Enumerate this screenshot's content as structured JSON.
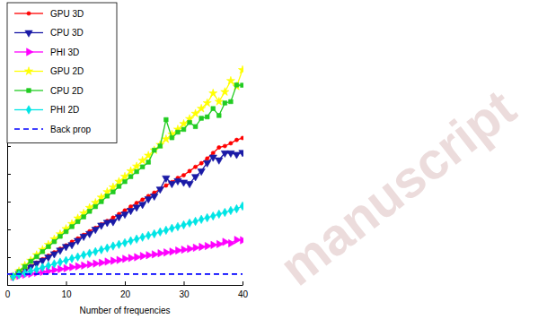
{
  "chart_data": {
    "type": "line",
    "x_label": "Number of frequencies",
    "xlim": [
      0,
      40
    ],
    "xticks": [
      0,
      10,
      20,
      30,
      40
    ],
    "ylim": [
      0,
      8
    ],
    "yticks": [
      0,
      1,
      2,
      3,
      4,
      5,
      6,
      7,
      8
    ],
    "tick_labels": "x",
    "grid": false,
    "legend": "upper left",
    "annotations": [
      "manuscript"
    ],
    "series": [
      {
        "name": "GPU 3D",
        "color": "#ff0000",
        "marker": "circle",
        "line_style": "solid",
        "x": [
          1,
          2,
          3,
          4,
          5,
          6,
          7,
          8,
          9,
          10,
          11,
          12,
          13,
          14,
          15,
          16,
          17,
          18,
          19,
          20,
          21,
          22,
          23,
          24,
          25,
          26,
          27,
          28,
          29,
          30,
          31,
          32,
          33,
          34,
          35,
          36,
          37,
          38,
          39,
          40
        ],
        "values": [
          0.3,
          0.42,
          0.55,
          0.68,
          0.8,
          0.92,
          1.05,
          1.17,
          1.3,
          1.42,
          1.55,
          1.67,
          1.8,
          1.93,
          2.05,
          2.18,
          2.3,
          2.42,
          2.55,
          2.68,
          2.82,
          2.95,
          3.07,
          3.2,
          3.32,
          3.45,
          3.58,
          3.7,
          3.85,
          3.95,
          4.1,
          4.25,
          4.38,
          4.55,
          4.75,
          4.95,
          5.0,
          5.1,
          5.22,
          5.29
        ]
      },
      {
        "name": "CPU 3D",
        "color": "#1a1aa6",
        "marker": "triangle-down",
        "line_style": "solid",
        "x": [
          1,
          2,
          3,
          4,
          5,
          6,
          7,
          8,
          9,
          10,
          11,
          12,
          13,
          14,
          15,
          16,
          17,
          18,
          19,
          20,
          21,
          22,
          23,
          24,
          25,
          26,
          27,
          28,
          29,
          30,
          31,
          32,
          33,
          34,
          35,
          36,
          37,
          38,
          39,
          40
        ],
        "values": [
          0.3,
          0.4,
          0.52,
          0.65,
          0.78,
          0.88,
          1.0,
          1.12,
          1.25,
          1.38,
          1.45,
          1.6,
          1.75,
          1.85,
          2.0,
          2.15,
          2.25,
          2.28,
          2.45,
          2.55,
          2.68,
          2.8,
          2.9,
          3.1,
          3.2,
          3.45,
          3.85,
          3.65,
          3.75,
          3.7,
          3.65,
          3.9,
          4.1,
          4.4,
          4.6,
          4.5,
          4.75,
          4.75,
          4.7,
          4.77
        ]
      },
      {
        "name": "PHI 3D",
        "color": "#ff00ff",
        "marker": "triangle-right",
        "line_style": "solid",
        "x": [
          1,
          2,
          3,
          4,
          5,
          6,
          7,
          8,
          9,
          10,
          11,
          12,
          13,
          14,
          15,
          16,
          17,
          18,
          19,
          20,
          21,
          22,
          23,
          24,
          25,
          26,
          27,
          28,
          29,
          30,
          31,
          32,
          33,
          34,
          35,
          36,
          37,
          38,
          39,
          40
        ],
        "values": [
          0.3,
          0.33,
          0.37,
          0.4,
          0.44,
          0.47,
          0.5,
          0.54,
          0.57,
          0.6,
          0.64,
          0.67,
          0.7,
          0.74,
          0.77,
          0.8,
          0.84,
          0.87,
          0.9,
          0.94,
          0.97,
          1.0,
          1.04,
          1.07,
          1.1,
          1.14,
          1.17,
          1.2,
          1.24,
          1.27,
          1.3,
          1.34,
          1.37,
          1.4,
          1.44,
          1.47,
          1.55,
          1.5,
          1.62,
          1.61
        ]
      },
      {
        "name": "GPU 2D",
        "color": "#ffff00",
        "marker": "star",
        "line_style": "solid",
        "x": [
          1,
          2,
          3,
          4,
          5,
          6,
          7,
          8,
          9,
          10,
          11,
          12,
          13,
          14,
          15,
          16,
          17,
          18,
          19,
          20,
          21,
          22,
          23,
          24,
          25,
          26,
          27,
          28,
          29,
          30,
          31,
          32,
          33,
          34,
          35,
          36,
          37,
          38,
          39,
          40
        ],
        "values": [
          0.32,
          0.5,
          0.7,
          0.88,
          1.08,
          1.27,
          1.45,
          1.65,
          1.83,
          2.02,
          2.2,
          2.4,
          2.58,
          2.78,
          2.96,
          3.15,
          3.35,
          3.52,
          3.72,
          3.9,
          4.1,
          4.27,
          4.48,
          4.66,
          4.85,
          5.05,
          5.25,
          5.42,
          5.6,
          5.8,
          5.98,
          6.17,
          6.35,
          6.55,
          6.9,
          6.6,
          6.95,
          7.35,
          7.15,
          7.74
        ]
      },
      {
        "name": "CPU 2D",
        "color": "#22cc22",
        "marker": "square",
        "line_style": "solid",
        "x": [
          1,
          2,
          3,
          4,
          5,
          6,
          7,
          8,
          9,
          10,
          11,
          12,
          13,
          14,
          15,
          16,
          17,
          18,
          19,
          20,
          21,
          22,
          23,
          24,
          25,
          26,
          27,
          28,
          29,
          30,
          31,
          32,
          33,
          34,
          35,
          36,
          37,
          38,
          39,
          40
        ],
        "values": [
          0.32,
          0.48,
          0.66,
          0.85,
          1.02,
          1.2,
          1.38,
          1.56,
          1.75,
          1.92,
          2.1,
          2.28,
          2.45,
          2.65,
          2.82,
          3.0,
          3.2,
          3.35,
          3.55,
          3.72,
          3.9,
          4.08,
          4.25,
          4.42,
          4.85,
          5.0,
          5.95,
          5.3,
          5.5,
          5.6,
          5.85,
          5.7,
          6.0,
          6.05,
          6.35,
          6.1,
          6.55,
          6.6,
          7.2,
          7.19
        ]
      },
      {
        "name": "PHI 2D",
        "color": "#00e5e5",
        "marker": "diamond",
        "line_style": "solid",
        "x": [
          1,
          2,
          3,
          4,
          5,
          6,
          7,
          8,
          9,
          10,
          11,
          12,
          13,
          14,
          15,
          16,
          17,
          18,
          19,
          20,
          21,
          22,
          23,
          24,
          25,
          26,
          27,
          28,
          29,
          30,
          31,
          32,
          33,
          34,
          35,
          36,
          37,
          38,
          39,
          40
        ],
        "values": [
          0.3,
          0.37,
          0.43,
          0.5,
          0.56,
          0.63,
          0.69,
          0.76,
          0.82,
          0.88,
          0.95,
          1.01,
          1.08,
          1.14,
          1.2,
          1.27,
          1.33,
          1.4,
          1.46,
          1.52,
          1.59,
          1.65,
          1.72,
          1.78,
          1.84,
          1.91,
          1.97,
          2.04,
          2.1,
          2.16,
          2.23,
          2.29,
          2.36,
          2.42,
          2.48,
          2.55,
          2.61,
          2.68,
          2.74,
          2.84
        ]
      },
      {
        "name": "Back prop",
        "color": "#0000ff",
        "marker": "none",
        "line_style": "dashed",
        "x": [
          0,
          40
        ],
        "values": [
          0.39,
          0.39
        ]
      }
    ]
  }
}
